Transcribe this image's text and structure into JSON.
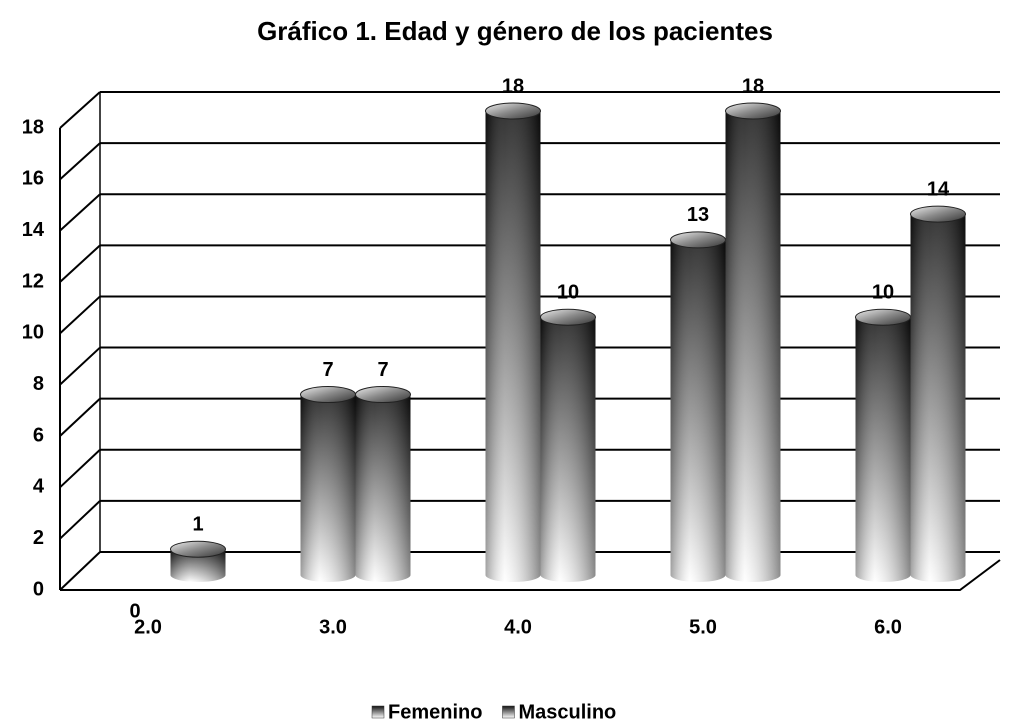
{
  "chart_data": {
    "type": "bar",
    "title": "Gráfico 1. Edad y género de los pacientes",
    "categories": [
      "2.0",
      "3.0",
      "4.0",
      "5.0",
      "6.0"
    ],
    "series": [
      {
        "name": "Femenino",
        "color": "#111111",
        "values": [
          0,
          7,
          18,
          13,
          10
        ]
      },
      {
        "name": "Masculino",
        "color": "#111111",
        "values": [
          1,
          7,
          10,
          18,
          14
        ]
      }
    ],
    "ylim": [
      0,
      18
    ],
    "yticks": [
      0,
      2,
      4,
      6,
      8,
      10,
      12,
      14,
      16,
      18
    ],
    "grid": true,
    "legend": "bottom"
  }
}
